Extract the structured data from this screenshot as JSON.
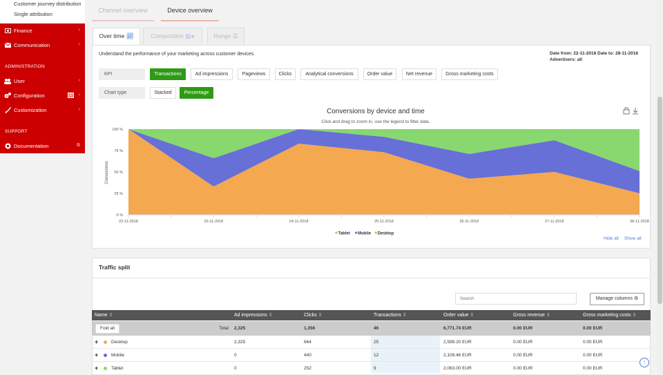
{
  "sidebar": {
    "top_items": [
      {
        "label": "Customer journey distribution"
      },
      {
        "label": "Single attribution"
      }
    ],
    "menu": [
      {
        "label": "Finance"
      },
      {
        "label": "Communication"
      }
    ],
    "admin_heading": "ADMINISTRATION",
    "admin_items": [
      {
        "label": "User"
      },
      {
        "label": "Configuration",
        "badge": "1"
      },
      {
        "label": "Customization"
      }
    ],
    "support_heading": "SUPPORT",
    "support_items": [
      {
        "label": "Documentation"
      }
    ]
  },
  "top_tabs": {
    "channel": "Channel overview",
    "device": "Device overview"
  },
  "sub_tabs": {
    "over_time": "Over time",
    "composition": "Composition",
    "range": "Range"
  },
  "description": "Understand the performance of your marketing across customer devices.",
  "date_range": "Date from: 22-11-2018 Date to: 28-11-2018",
  "advertisers": "Advertisers: all",
  "kpi": {
    "label": "KPI",
    "options": [
      "Transactions",
      "Ad impressions",
      "Pageviews",
      "Clicks",
      "Analytical conversions",
      "Order value",
      "Net revenue",
      "Gross marketing costs"
    ],
    "selected": "Transactions"
  },
  "chart_type": {
    "label": "Chart type",
    "options": [
      "Stacked",
      "Percentage"
    ],
    "selected": "Percentage"
  },
  "chart_data": {
    "type": "area",
    "title": "Conversions by device and time",
    "subtitle": "Click and drag to zoom in, use the legend to filter data.",
    "ylabel": "Conversions",
    "x": [
      "22-11-2018",
      "23-11-2018",
      "24-11-2018",
      "25-11-2018",
      "26-11-2018",
      "27-11-2018",
      "28-11-2018"
    ],
    "yticks": [
      "0 %",
      "25 %",
      "50 %",
      "75 %",
      "100 %"
    ],
    "ylim": [
      0,
      100
    ],
    "stacking": "percent",
    "series": [
      {
        "name": "Desktop",
        "color": "#f4a84f",
        "values": [
          100,
          33,
          83,
          73,
          42,
          50,
          25
        ]
      },
      {
        "name": "Mobile",
        "color": "#6670d6",
        "values": [
          0,
          33,
          17,
          18,
          29,
          37,
          26
        ]
      },
      {
        "name": "Tablet",
        "color": "#88d86f",
        "values": [
          0,
          34,
          0,
          9,
          29,
          13,
          49
        ]
      }
    ],
    "legend": [
      {
        "label": "Tablet",
        "color": "#88d86f"
      },
      {
        "label": "Mobile",
        "color": "#6670d6"
      },
      {
        "label": "Desktop",
        "color": "#f4a84f"
      }
    ],
    "legend_position": "bottom"
  },
  "hide_all": "Hide all",
  "show_all": "Show all",
  "traffic": {
    "title": "Traffic split",
    "search_placeholder": "Search",
    "manage_columns": "Manage columns",
    "columns": [
      "Name",
      "Ad impressions",
      "Clicks",
      "Transactions",
      "Order value",
      "Gross revenue",
      "Gross marketing costs"
    ],
    "fold_all": "Fold all",
    "total_label": "Total",
    "total": [
      "2,325",
      "1,356",
      "46",
      "6,771.74 EUR",
      "0.00 EUR",
      "0.00 EUR"
    ],
    "rows": [
      {
        "name": "Desktop",
        "color": "#f4a84f",
        "values": [
          "2,325",
          "664",
          "25",
          "2,599.20 EUR",
          "0.00 EUR",
          "0.00 EUR"
        ]
      },
      {
        "name": "Mobile",
        "color": "#6670d6",
        "values": [
          "0",
          "440",
          "12",
          "2,109.46 EUR",
          "0.00 EUR",
          "0.00 EUR"
        ]
      },
      {
        "name": "Tablet",
        "color": "#88d86f",
        "values": [
          "0",
          "252",
          "9",
          "2,063.00 EUR",
          "0.00 EUR",
          "0.00 EUR"
        ]
      }
    ]
  }
}
